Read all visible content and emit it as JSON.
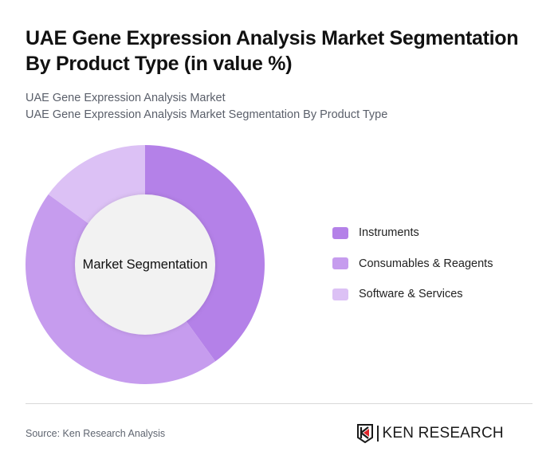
{
  "header": {
    "title": "UAE Gene Expression Analysis Market Segmentation By Product Type (in value %)",
    "subtitle_line1": "UAE Gene Expression Analysis Market",
    "subtitle_line2": "UAE Gene Expression Analysis Market Segmentation By Product Type"
  },
  "chart": {
    "center_label": "Market Segmentation"
  },
  "legend": {
    "items": [
      {
        "label": "Instruments",
        "color": "#b481e8"
      },
      {
        "label": "Consumables & Reagents",
        "color": "#c69cee"
      },
      {
        "label": "Software & Services",
        "color": "#dcc1f5"
      }
    ]
  },
  "footer": {
    "source": "Source: Ken Research Analysis",
    "logo_text": "KEN RESEARCH",
    "logo_accent_color": "#e0262b"
  },
  "chart_data": {
    "type": "pie",
    "subtype": "donut",
    "title": "UAE Gene Expression Analysis Market Segmentation By Product Type (in value %)",
    "subtitle": [
      "UAE Gene Expression Analysis Market",
      "UAE Gene Expression Analysis Market Segmentation By Product Type"
    ],
    "center_label": "Market Segmentation",
    "categories": [
      "Instruments",
      "Consumables & Reagents",
      "Software & Services"
    ],
    "values": [
      40,
      45,
      15
    ],
    "colors": [
      "#b481e8",
      "#c69cee",
      "#dcc1f5"
    ],
    "unit": "%",
    "start_angle": "12 o'clock, clockwise",
    "legend_position": "right",
    "source": "Source: Ken Research Analysis"
  }
}
